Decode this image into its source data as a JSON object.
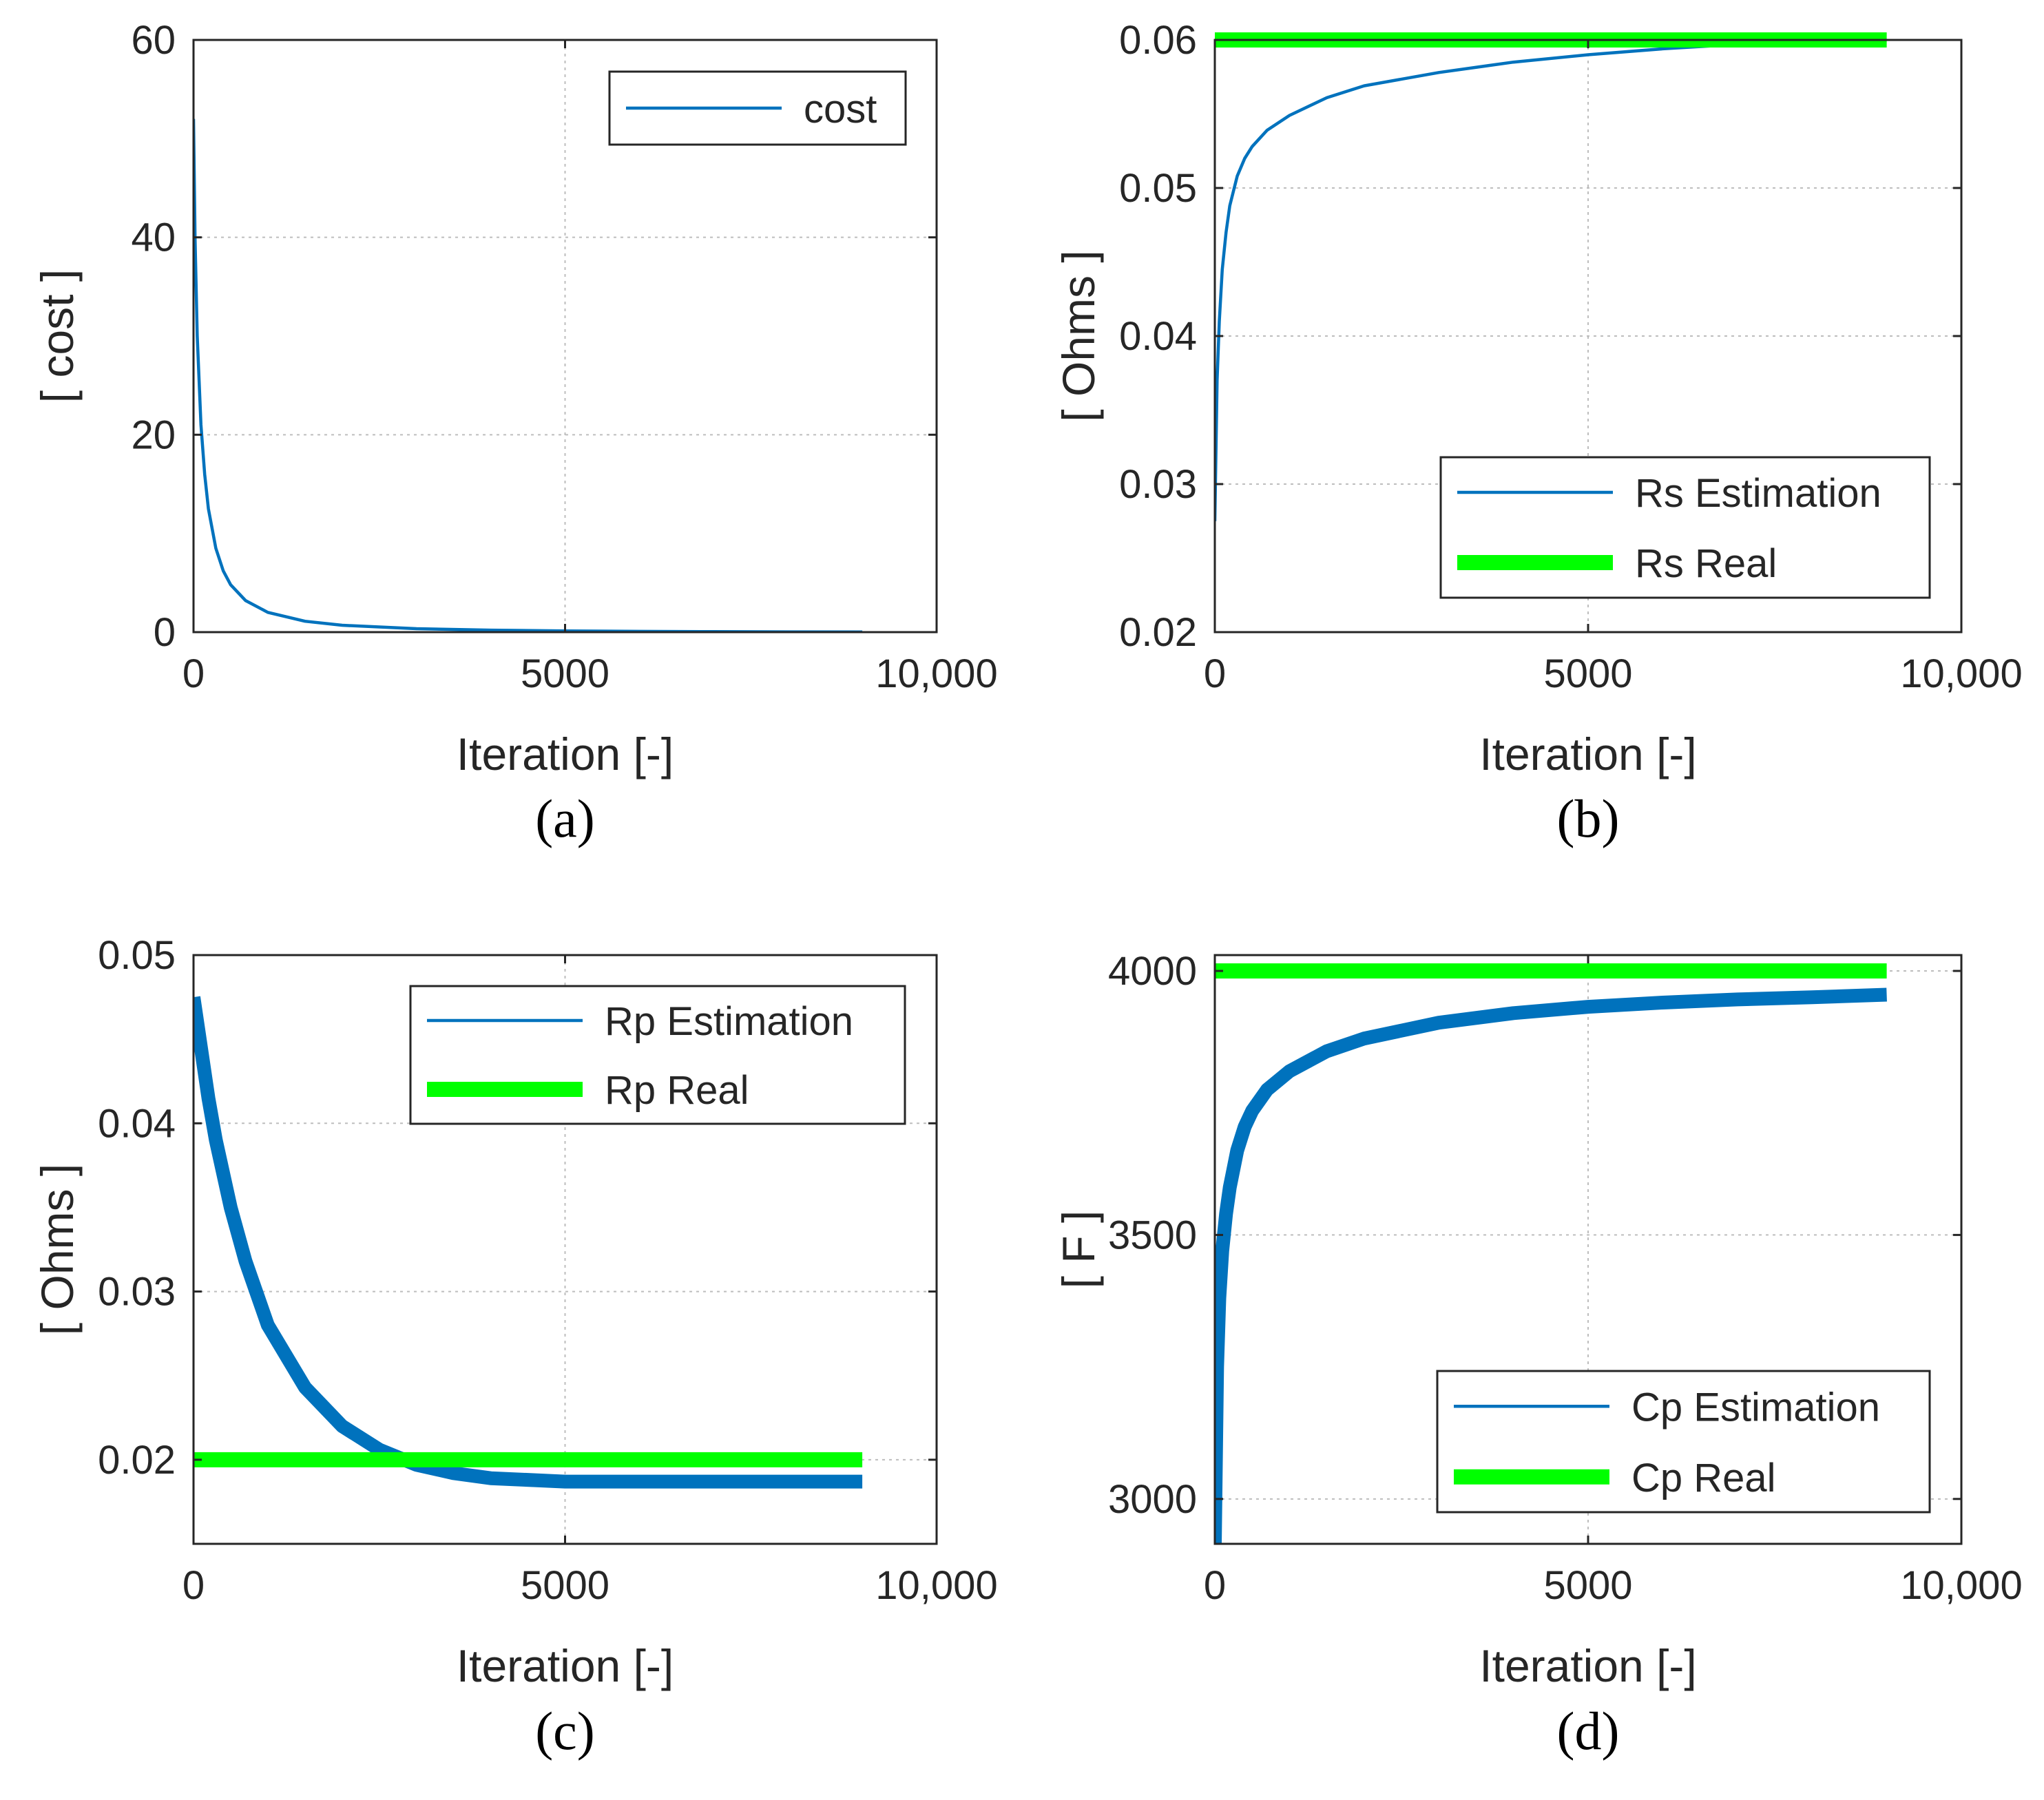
{
  "colors": {
    "estimation": "#0072BD",
    "real": "#00FF00",
    "grid": "#BDBDBD",
    "axis": "#262626"
  },
  "chart_data": [
    {
      "type": "line",
      "caption": "(a)",
      "xlabel": "Iteration [-]",
      "ylabel": "[ cost ]",
      "xlim": [
        0,
        10000
      ],
      "ylim": [
        0,
        60
      ],
      "xticks": [
        0,
        5000,
        10000
      ],
      "xtick_labels": [
        "0",
        "5000",
        "10,000"
      ],
      "yticks": [
        0,
        20,
        40,
        60
      ],
      "ytick_labels": [
        "0",
        "20",
        "40",
        "60"
      ],
      "grid": true,
      "legend_position": "top-right",
      "series": [
        {
          "name": "cost",
          "kind": "estimation",
          "thickness": "thin",
          "x": [
            0,
            20,
            50,
            100,
            150,
            200,
            300,
            400,
            500,
            700,
            1000,
            1500,
            2000,
            3000,
            4000,
            5000,
            6000,
            7000,
            8000,
            9000
          ],
          "y": [
            52,
            40,
            30,
            21,
            16,
            12.5,
            8.5,
            6.2,
            4.8,
            3.2,
            2.0,
            1.1,
            0.7,
            0.35,
            0.2,
            0.12,
            0.08,
            0.05,
            0.03,
            0.02
          ]
        }
      ]
    },
    {
      "type": "line",
      "caption": "(b)",
      "xlabel": "Iteration [-]",
      "ylabel": "[ Ohms ]",
      "xlim": [
        0,
        10000
      ],
      "ylim": [
        0.02,
        0.06
      ],
      "xticks": [
        0,
        5000,
        10000
      ],
      "xtick_labels": [
        "0",
        "5000",
        "10,000"
      ],
      "yticks": [
        0.02,
        0.03,
        0.04,
        0.05,
        0.06
      ],
      "ytick_labels": [
        "0.02",
        "0.03",
        "0.04",
        "0.05",
        "0.06"
      ],
      "grid": true,
      "legend_position": "bottom-right",
      "series": [
        {
          "name": "Rs Estimation",
          "kind": "estimation",
          "thickness": "thin",
          "x": [
            0,
            30,
            60,
            100,
            150,
            200,
            300,
            400,
            500,
            700,
            1000,
            1500,
            2000,
            3000,
            4000,
            5000,
            6000,
            7000,
            8000,
            9000
          ],
          "y": [
            0.0275,
            0.037,
            0.041,
            0.0445,
            0.047,
            0.0488,
            0.0508,
            0.052,
            0.0528,
            0.0539,
            0.0549,
            0.0561,
            0.0569,
            0.0578,
            0.0585,
            0.059,
            0.0594,
            0.0597,
            0.0599,
            0.06
          ]
        },
        {
          "name": "Rs Real",
          "kind": "real",
          "thickness": "thick",
          "x": [
            0,
            9000
          ],
          "y": [
            0.06,
            0.06
          ]
        }
      ]
    },
    {
      "type": "line",
      "caption": "(c)",
      "xlabel": "Iteration [-]",
      "ylabel": "[ Ohms ]",
      "xlim": [
        0,
        10000
      ],
      "ylim": [
        0.015,
        0.05
      ],
      "xticks": [
        0,
        5000,
        10000
      ],
      "xtick_labels": [
        "0",
        "5000",
        "10,000"
      ],
      "yticks": [
        0.02,
        0.03,
        0.04,
        0.05
      ],
      "ytick_labels": [
        "0.02",
        "0.03",
        "0.04",
        "0.05"
      ],
      "grid": true,
      "legend_position": "top-right",
      "series": [
        {
          "name": "Rp Estimation",
          "kind": "estimation",
          "thickness": "band",
          "x": [
            0,
            50,
            100,
            200,
            300,
            500,
            700,
            1000,
            1500,
            2000,
            2500,
            3000,
            3500,
            4000,
            5000,
            6000,
            7000,
            8000,
            9000
          ],
          "y": [
            0.0475,
            0.046,
            0.0445,
            0.0415,
            0.039,
            0.035,
            0.0318,
            0.028,
            0.0243,
            0.022,
            0.0206,
            0.0197,
            0.0192,
            0.0189,
            0.0187,
            0.0187,
            0.0187,
            0.0187,
            0.0187
          ]
        },
        {
          "name": "Rp Real",
          "kind": "real",
          "thickness": "thick",
          "x": [
            0,
            9000
          ],
          "y": [
            0.02,
            0.02
          ]
        }
      ]
    },
    {
      "type": "line",
      "caption": "(d)",
      "xlabel": "Iteration [-]",
      "ylabel": "[ F ]",
      "xlim": [
        0,
        10000
      ],
      "ylim": [
        2915,
        4030
      ],
      "xticks": [
        0,
        5000,
        10000
      ],
      "xtick_labels": [
        "0",
        "5000",
        "10,000"
      ],
      "yticks": [
        3000,
        3500,
        4000
      ],
      "ytick_labels": [
        "3000",
        "3500",
        "4000"
      ],
      "grid": true,
      "legend_position": "bottom-right",
      "series": [
        {
          "name": "Cp Estimation",
          "kind": "estimation",
          "thickness": "band",
          "x": [
            0,
            30,
            60,
            100,
            150,
            200,
            300,
            400,
            500,
            700,
            1000,
            1500,
            2000,
            3000,
            4000,
            5000,
            6000,
            7000,
            8000,
            9000
          ],
          "y": [
            2915,
            3250,
            3380,
            3470,
            3540,
            3590,
            3660,
            3705,
            3735,
            3775,
            3810,
            3848,
            3872,
            3902,
            3920,
            3932,
            3940,
            3946,
            3950,
            3955
          ]
        },
        {
          "name": "Cp Real",
          "kind": "real",
          "thickness": "thick",
          "x": [
            0,
            9000
          ],
          "y": [
            4000,
            4000
          ]
        }
      ]
    }
  ]
}
